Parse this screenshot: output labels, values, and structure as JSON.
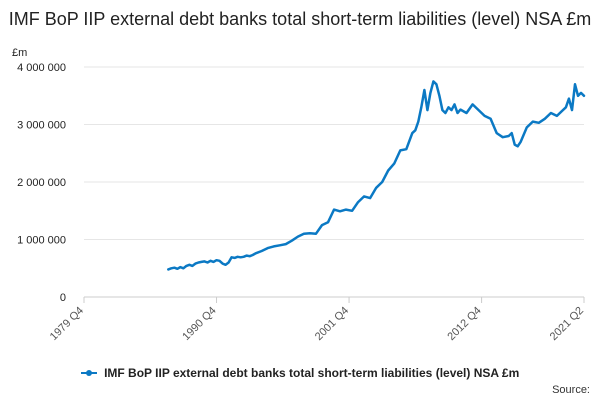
{
  "chart_data": {
    "type": "line",
    "title": "IMF BoP IIP external debt banks total short-term liabilities (level) NSA £m",
    "ylabel": "£m",
    "xlabel": "",
    "y_ticks": [
      0,
      1000000,
      2000000,
      3000000,
      4000000
    ],
    "y_tick_labels": [
      "0",
      "1 000 000",
      "2 000 000",
      "3 000 000",
      "4 000 000"
    ],
    "ylim": [
      0,
      4000000
    ],
    "x_ticks": [
      1979.75,
      1990.75,
      2001.75,
      2012.75,
      2021.25
    ],
    "x_tick_labels": [
      "1979 Q4",
      "1990 Q4",
      "2001 Q4",
      "2012 Q4",
      "2021 Q2"
    ],
    "xlim": [
      1979.75,
      2021.25
    ],
    "grid": true,
    "legend_position": "bottom",
    "color": "#0b79c4",
    "series": [
      {
        "name": "IMF BoP IIP external debt banks total short-term liabilities (level) NSA £m",
        "x": [
          1986.75,
          1987.0,
          1987.25,
          1987.5,
          1987.75,
          1988.0,
          1988.25,
          1988.5,
          1988.75,
          1989.0,
          1989.25,
          1989.5,
          1989.75,
          1990.0,
          1990.25,
          1990.5,
          1990.75,
          1991.0,
          1991.25,
          1991.5,
          1991.75,
          1992.0,
          1992.25,
          1992.5,
          1992.75,
          1993.0,
          1993.25,
          1993.5,
          1993.75,
          1994.0,
          1994.5,
          1995.0,
          1995.5,
          1996.0,
          1996.5,
          1997.0,
          1997.5,
          1998.0,
          1998.5,
          1999.0,
          1999.5,
          2000.0,
          2000.5,
          2001.0,
          2001.5,
          2002.0,
          2002.5,
          2003.0,
          2003.5,
          2004.0,
          2004.5,
          2005.0,
          2005.5,
          2006.0,
          2006.5,
          2007.0,
          2007.25,
          2007.5,
          2007.75,
          2008.0,
          2008.25,
          2008.5,
          2008.75,
          2009.0,
          2009.25,
          2009.5,
          2009.75,
          2010.0,
          2010.25,
          2010.5,
          2010.75,
          2011.0,
          2011.5,
          2012.0,
          2012.5,
          2012.75,
          2013.0,
          2013.5,
          2014.0,
          2014.5,
          2015.0,
          2015.25,
          2015.5,
          2015.75,
          2016.0,
          2016.5,
          2017.0,
          2017.5,
          2018.0,
          2018.5,
          2019.0,
          2019.5,
          2019.75,
          2020.0,
          2020.25,
          2020.5,
          2020.75,
          2021.0,
          2021.25
        ],
        "values": [
          480000,
          500000,
          510000,
          490000,
          520000,
          500000,
          540000,
          560000,
          540000,
          580000,
          600000,
          610000,
          620000,
          600000,
          630000,
          610000,
          640000,
          630000,
          580000,
          560000,
          600000,
          690000,
          680000,
          700000,
          690000,
          700000,
          720000,
          710000,
          730000,
          760000,
          800000,
          850000,
          880000,
          900000,
          920000,
          980000,
          1050000,
          1100000,
          1110000,
          1100000,
          1250000,
          1300000,
          1520000,
          1490000,
          1520000,
          1500000,
          1650000,
          1750000,
          1720000,
          1900000,
          2000000,
          2200000,
          2320000,
          2550000,
          2570000,
          2850000,
          2900000,
          3050000,
          3300000,
          3600000,
          3250000,
          3550000,
          3750000,
          3700000,
          3500000,
          3250000,
          3200000,
          3300000,
          3250000,
          3350000,
          3200000,
          3260000,
          3200000,
          3350000,
          3250000,
          3200000,
          3150000,
          3100000,
          2850000,
          2780000,
          2800000,
          2850000,
          2650000,
          2620000,
          2700000,
          2950000,
          3050000,
          3030000,
          3100000,
          3200000,
          3150000,
          3250000,
          3300000,
          3450000,
          3250000,
          3700000,
          3500000,
          3550000,
          3500000
        ]
      }
    ]
  },
  "legend": {
    "label": "IMF BoP IIP external debt banks total short-term liabilities (level) NSA £m"
  },
  "source_label": "Source:"
}
